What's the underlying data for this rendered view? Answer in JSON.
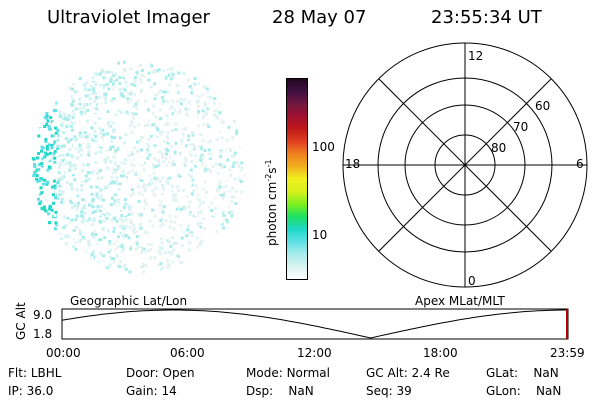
{
  "header": {
    "instrument": "Ultraviolet Imager",
    "date": "28 May 07",
    "time": "23:55:34 UT"
  },
  "colorbar": {
    "unit_label": "photon cm",
    "unit_exp1": "-2",
    "unit_mid": "s",
    "unit_exp2": "-1",
    "ticks": [
      {
        "label": "100",
        "value": 100
      },
      {
        "label": "10",
        "value": 10
      }
    ],
    "colors": [
      "#ffffff",
      "#d8f3f2",
      "#a8ecec",
      "#5ee0e6",
      "#1ed8c8",
      "#1ee060",
      "#7ef01e",
      "#d8f01e",
      "#f0f01e",
      "#f0b01e",
      "#f08020",
      "#e04020",
      "#c01818",
      "#a01030",
      "#701840",
      "#401040",
      "#200820"
    ]
  },
  "polar": {
    "mlt_labels": {
      "top": "12",
      "left": "18",
      "right": "6",
      "bottom": "0"
    },
    "lat_labels": [
      "60",
      "70",
      "80"
    ]
  },
  "timeline": {
    "left_label": "Geographic Lat/Lon",
    "right_label": "Apex MLat/MLT",
    "axis_title": "GC Alt",
    "y_ticks": [
      "9.0",
      "1.8"
    ],
    "x_ticks": [
      "00:00",
      "06:00",
      "12:00",
      "18:00",
      "23:59"
    ],
    "orbit_curve_color": "#000000",
    "marker_color": "#b00000"
  },
  "footer": {
    "col1": [
      {
        "k": "Flt:",
        "v": "LBHL"
      },
      {
        "k": "IP:",
        "v": "36.0"
      }
    ],
    "col2": [
      {
        "k": "Door:",
        "v": "Open"
      },
      {
        "k": "Gain:",
        "v": "14"
      }
    ],
    "col3": [
      {
        "k": "Mode:",
        "v": "Normal"
      },
      {
        "k": "Dsp:",
        "v": "NaN"
      }
    ],
    "col4": [
      {
        "k": "GC Alt:",
        "v": "2.4 Re"
      },
      {
        "k": "Seq:",
        "v": "39"
      }
    ],
    "col5": [
      {
        "k": "GLat:",
        "v": "NaN"
      },
      {
        "k": "GLon:",
        "v": "NaN"
      }
    ]
  }
}
